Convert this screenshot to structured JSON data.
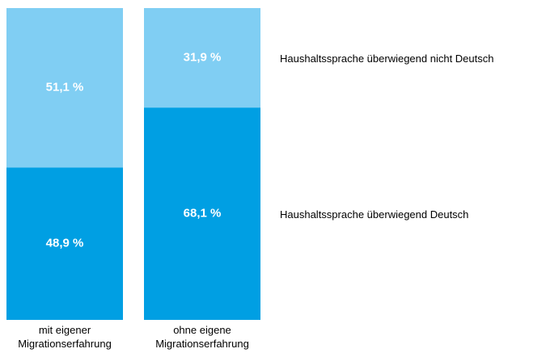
{
  "chart_data": {
    "type": "stacked_bar",
    "categories": [
      "mit eigener\nMigrationserfahrung",
      "ohne eigene\nMigrationserfahrung"
    ],
    "series": [
      {
        "name": "Haushaltssprache überwiegend Deutsch",
        "color": "#009fe3",
        "values": [
          48.9,
          68.1
        ],
        "value_labels": [
          "48,9 %",
          "68,1 %"
        ]
      },
      {
        "name": "Haushaltssprache überwiegend nicht Deutsch",
        "color": "#80cef3",
        "values": [
          51.1,
          31.9
        ],
        "value_labels": [
          "51,1 %",
          "31,9 %"
        ]
      }
    ]
  }
}
